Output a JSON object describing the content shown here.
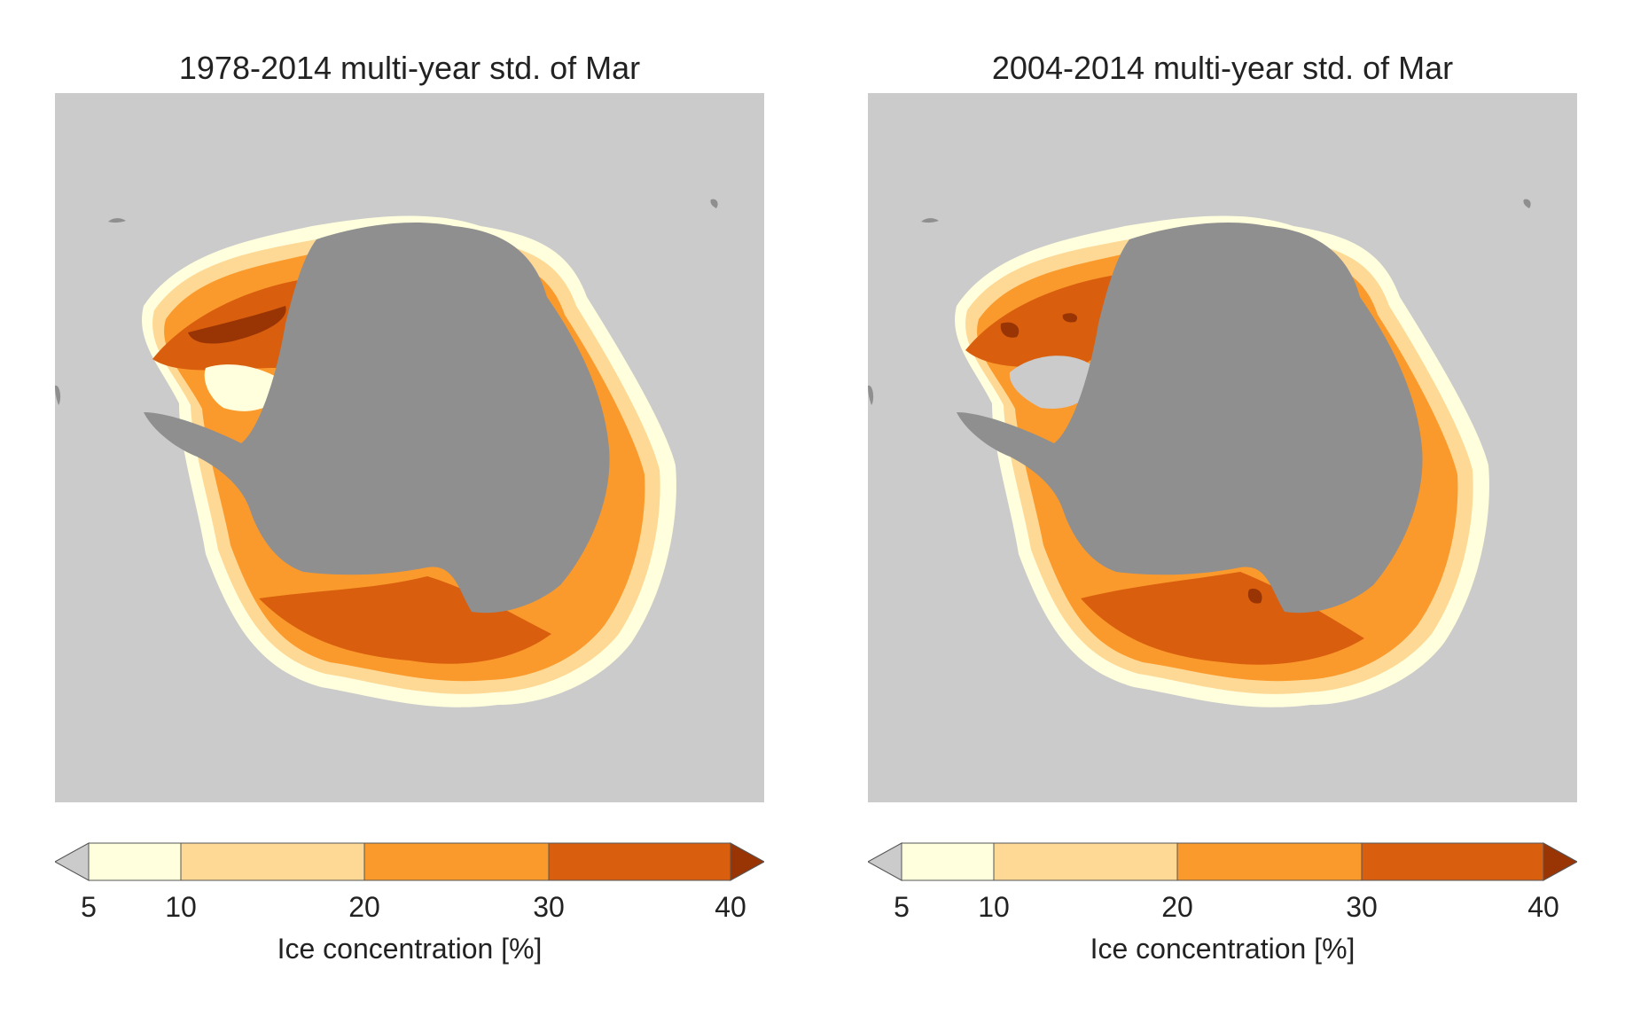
{
  "panels": [
    {
      "title": "1978-2014 multi-year std. of Mar"
    },
    {
      "title": "2004-2014 multi-year std. of Mar"
    }
  ],
  "colorbar": {
    "label": "Ice concentration [%]",
    "ticks": [
      "5",
      "10",
      "20",
      "30",
      "40"
    ],
    "levels": [
      5,
      10,
      20,
      30,
      40
    ],
    "colors": {
      "below": "#cbcbcb",
      "b5_10": "#ffffdd",
      "b10_20": "#fed995",
      "b20_30": "#fb9a2c",
      "b30_40": "#d95f0e",
      "above": "#993404"
    }
  },
  "map_colors": {
    "ocean_background": "#cbcbcb",
    "land": "#8f8f8f"
  }
}
